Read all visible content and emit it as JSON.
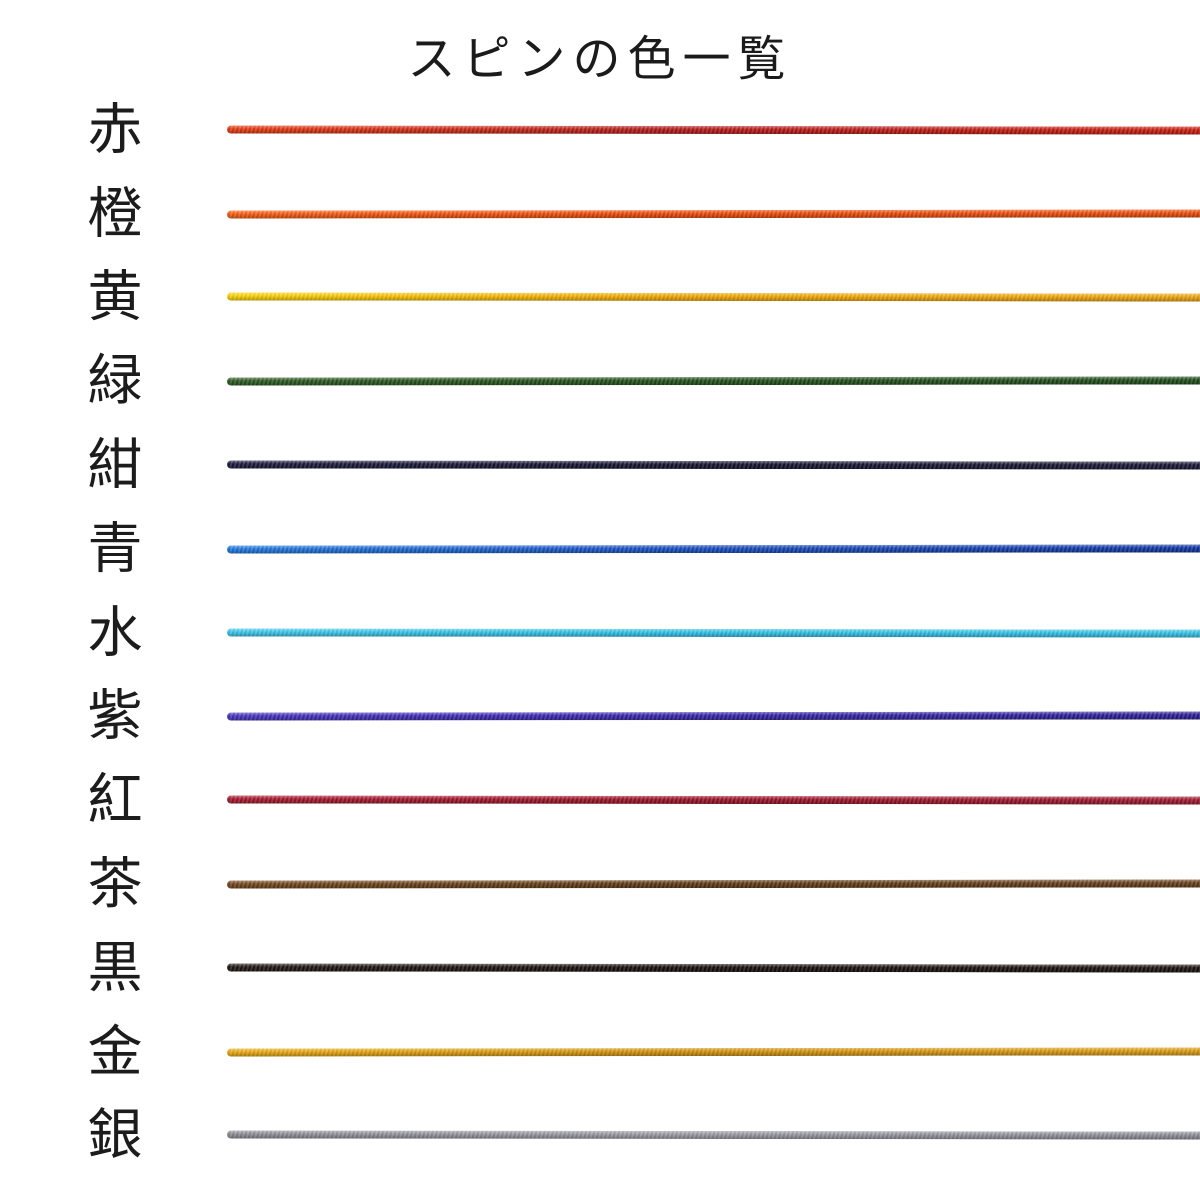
{
  "title": "スピンの色一覧",
  "background": "#ffffff",
  "text_color": "#1c1c1c",
  "rows": [
    {
      "label": "赤",
      "name": "red",
      "colors": [
        "#ea3a10",
        "#b21a19",
        "#cd1d0e"
      ]
    },
    {
      "label": "橙",
      "name": "orange",
      "colors": [
        "#fa5d10",
        "#ef4a0a",
        "#ee4d09"
      ]
    },
    {
      "label": "黄",
      "name": "yellow",
      "colors": [
        "#ffd405",
        "#f2a801",
        "#f0a60e"
      ]
    },
    {
      "label": "緑",
      "name": "green",
      "colors": [
        "#2c5a20",
        "#24511c",
        "#1f4d1a"
      ]
    },
    {
      "label": "紺",
      "name": "navy",
      "colors": [
        "#1b1b40",
        "#14142f",
        "#181838"
      ]
    },
    {
      "label": "青",
      "name": "blue",
      "colors": [
        "#1f7ae0",
        "#1a50c4",
        "#0f35a0"
      ]
    },
    {
      "label": "水",
      "name": "aqua",
      "colors": [
        "#3cc8ec",
        "#2ec2e8",
        "#35c5ea"
      ]
    },
    {
      "label": "紫",
      "name": "purple",
      "colors": [
        "#4733c0",
        "#3726ac",
        "#2c1f96"
      ]
    },
    {
      "label": "紅",
      "name": "crimson",
      "colors": [
        "#a8182e",
        "#9a1226",
        "#a01830"
      ]
    },
    {
      "label": "茶",
      "name": "brown",
      "colors": [
        "#74481c",
        "#5f3a14",
        "#68401a"
      ]
    },
    {
      "label": "黒",
      "name": "black",
      "colors": [
        "#201814",
        "#16100d",
        "#1a130f"
      ]
    },
    {
      "label": "金",
      "name": "gold",
      "colors": [
        "#ecab10",
        "#d3920c",
        "#dd9c12"
      ]
    },
    {
      "label": "銀",
      "name": "silver",
      "colors": [
        "#8e8e96",
        "#9c9ca4",
        "#90909a"
      ]
    }
  ]
}
